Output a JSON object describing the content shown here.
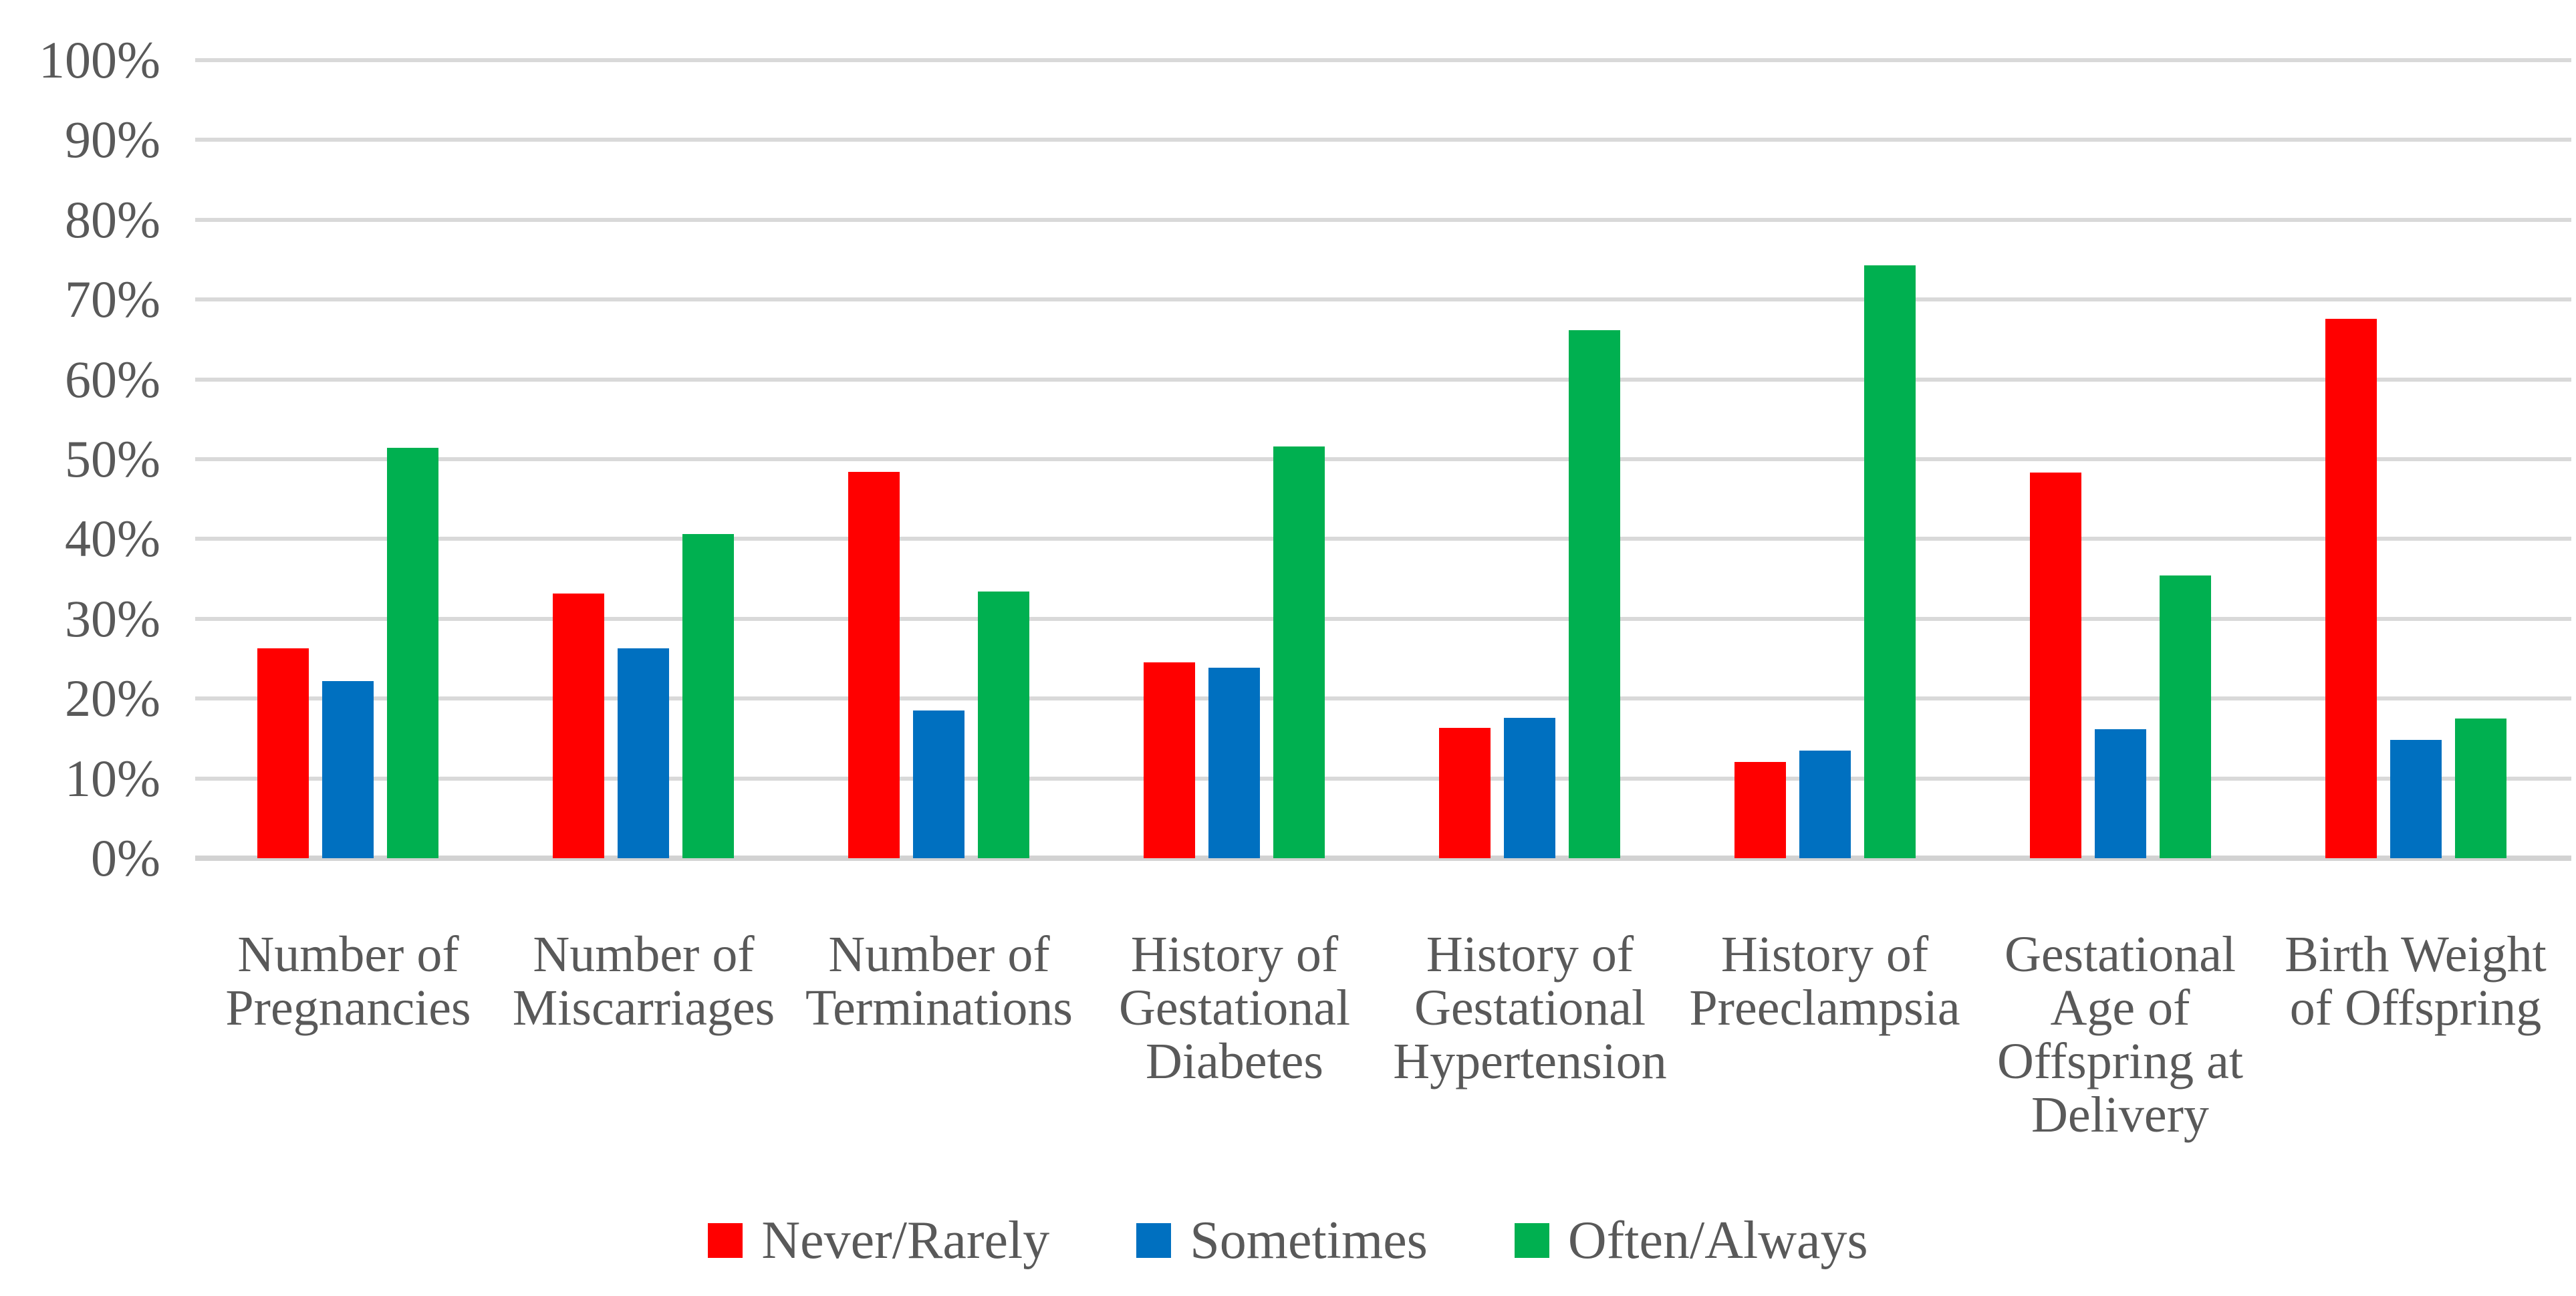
{
  "figure": {
    "background_color": "#FFFFFF",
    "text_color": "#595959",
    "gridline_color": "#D9D9D9"
  },
  "chart_data": {
    "type": "bar",
    "title": "",
    "xlabel": "",
    "ylabel": "",
    "ylim": [
      0,
      100
    ],
    "ytick_step": 10,
    "ytick_labels": [
      "0%",
      "10%",
      "20%",
      "30%",
      "40%",
      "50%",
      "60%",
      "70%",
      "80%",
      "90%",
      "100%"
    ],
    "grid": "horizontal",
    "legend_position": "bottom",
    "categories": [
      "Number of Pregnancies",
      "Number of Miscarriages",
      "Number of Terminations",
      "History of Gestational Diabetes",
      "History of Gestational Hypertension",
      "History of Preeclampsia",
      "Gestational Age of Offspring at Delivery",
      "Birth Weight of Offspring"
    ],
    "category_label_lines": [
      [
        "Number of",
        "Pregnancies"
      ],
      [
        "Number of",
        "Miscarriages"
      ],
      [
        "Number of",
        "Terminations"
      ],
      [
        "History of",
        "Gestational",
        "Diabetes"
      ],
      [
        "History of",
        "Gestational",
        "Hypertension"
      ],
      [
        "History of",
        "Preeclampsia"
      ],
      [
        "Gestational",
        "Age of",
        "Offspring at",
        "Delivery"
      ],
      [
        "Birth Weight",
        "of Offspring"
      ]
    ],
    "series": [
      {
        "name": "Never/Rarely",
        "color": "#FF0000",
        "values": [
          26.3,
          33.2,
          48.4,
          24.5,
          16.3,
          12.1,
          48.3,
          67.6
        ]
      },
      {
        "name": "Sometimes",
        "color": "#0070C0",
        "values": [
          22.2,
          26.3,
          18.5,
          23.9,
          17.6,
          13.5,
          16.2,
          14.8
        ]
      },
      {
        "name": "Often/Always",
        "color": "#00B050",
        "values": [
          51.4,
          40.6,
          33.4,
          51.6,
          66.2,
          74.3,
          35.4,
          17.5
        ]
      }
    ]
  }
}
